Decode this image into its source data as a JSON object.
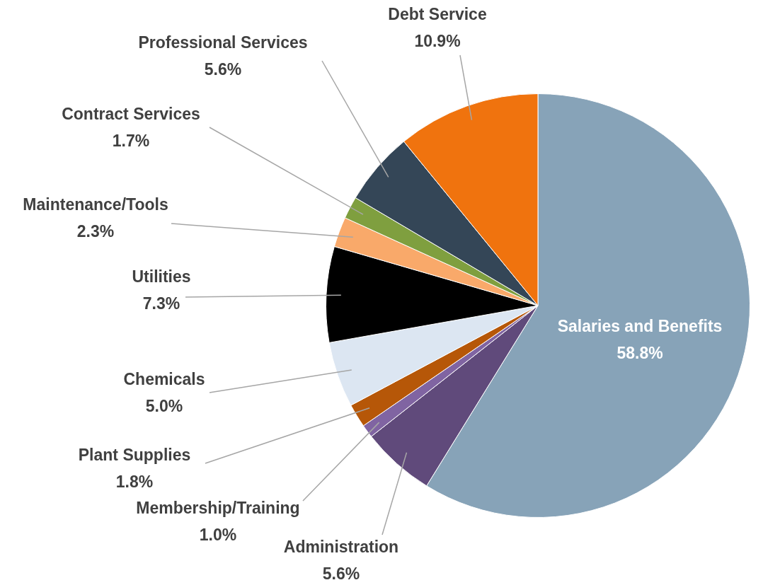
{
  "chart_data": {
    "type": "pie",
    "categories": [
      "Salaries and Benefits",
      "Administration",
      "Membership/Training",
      "Plant Supplies",
      "Chemicals",
      "Utilities",
      "Maintenance/Tools",
      "Contract Services",
      "Professional Services",
      "Debt Service"
    ],
    "values": [
      58.8,
      5.6,
      1.0,
      1.8,
      5.0,
      7.3,
      2.3,
      1.7,
      5.6,
      10.9
    ],
    "colors": [
      "#87a3b8",
      "#604a7b",
      "#8064a2",
      "#b65708",
      "#dce6f2",
      "#000000",
      "#f9a96a",
      "#7f9f3f",
      "#344657",
      "#f0730e"
    ],
    "value_labels": [
      "58.8%",
      "5.6%",
      "1.0%",
      "1.8%",
      "5.0%",
      "7.3%",
      "2.3%",
      "1.7%",
      "5.6%",
      "10.9%"
    ],
    "legend": false
  }
}
